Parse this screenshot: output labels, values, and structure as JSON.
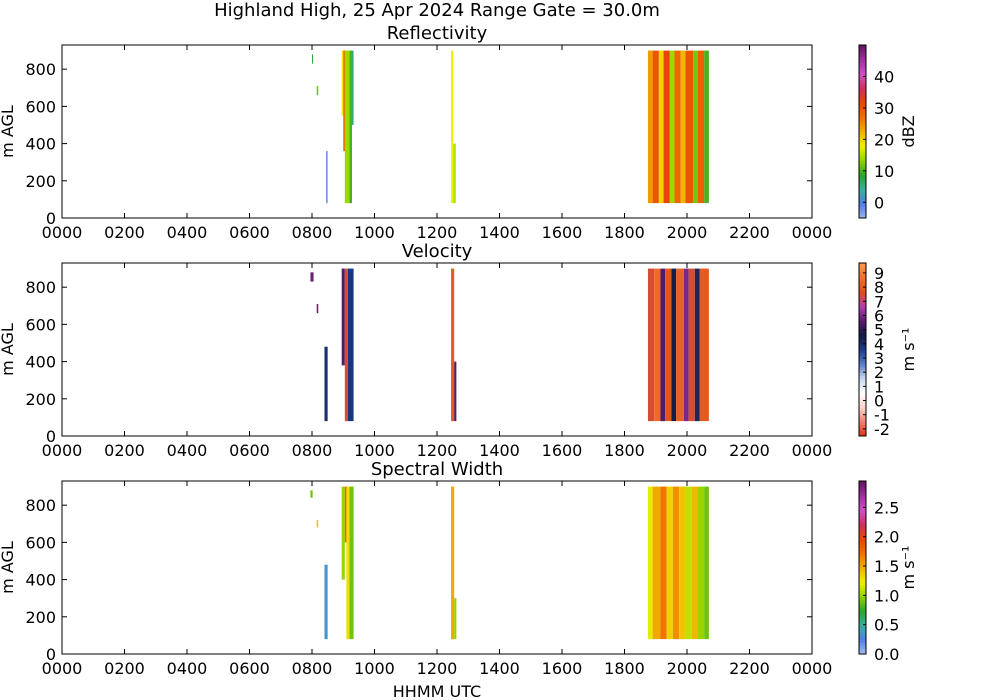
{
  "suptitle": "Highland High, 25 Apr 2024 Range Gate = 30.0m",
  "xlabel": "HHMM UTC",
  "chart_data": [
    {
      "type": "heatmap",
      "title": "Reflectivity",
      "ylabel": "m AGL",
      "xlim": [
        0,
        24
      ],
      "ylim": [
        0,
        930
      ],
      "x_ticks": [
        "0000",
        "0200",
        "0400",
        "0600",
        "0800",
        "1000",
        "1200",
        "1400",
        "1600",
        "1800",
        "2000",
        "2200",
        "0000"
      ],
      "y_ticks": [
        0,
        200,
        400,
        600,
        800
      ],
      "colorbar": {
        "label": "dBZ",
        "range": [
          -5,
          50
        ],
        "ticks": [
          0,
          10,
          20,
          30,
          40
        ],
        "stops": [
          "#9db4f0",
          "#4f7fe6",
          "#3ab0a0",
          "#2aa52a",
          "#8fd400",
          "#f0f000",
          "#f0b000",
          "#f07000",
          "#e84800",
          "#d03060",
          "#d050c8",
          "#a030a0",
          "#601860"
        ]
      },
      "segments": [
        {
          "x0": 8.0,
          "x1": 8.03,
          "y0": 830,
          "y1": 880,
          "value": 8
        },
        {
          "x0": 8.15,
          "x1": 8.2,
          "y0": 660,
          "y1": 710,
          "value": 12
        },
        {
          "x0": 8.45,
          "x1": 8.5,
          "y0": 80,
          "y1": 360,
          "value": -2
        },
        {
          "x0": 8.95,
          "x1": 9.05,
          "y0": 550,
          "y1": 900,
          "value": 18
        },
        {
          "x0": 9.0,
          "x1": 9.15,
          "y0": 360,
          "y1": 900,
          "value": 28
        },
        {
          "x0": 9.05,
          "x1": 9.2,
          "y0": 80,
          "y1": 900,
          "value": 14
        },
        {
          "x0": 9.2,
          "x1": 9.28,
          "y0": 80,
          "y1": 900,
          "value": 10
        },
        {
          "x0": 9.28,
          "x1": 9.33,
          "y0": 500,
          "y1": 900,
          "value": 6
        },
        {
          "x0": 12.45,
          "x1": 12.52,
          "y0": 80,
          "y1": 900,
          "value": 18
        },
        {
          "x0": 12.52,
          "x1": 12.6,
          "y0": 80,
          "y1": 400,
          "value": 15
        },
        {
          "x0": 18.75,
          "x1": 18.9,
          "y0": 80,
          "y1": 900,
          "value": 24
        },
        {
          "x0": 18.9,
          "x1": 19.1,
          "y0": 80,
          "y1": 900,
          "value": 30
        },
        {
          "x0": 19.1,
          "x1": 19.25,
          "y0": 80,
          "y1": 900,
          "value": 20
        },
        {
          "x0": 19.25,
          "x1": 19.45,
          "y0": 80,
          "y1": 900,
          "value": 32
        },
        {
          "x0": 19.45,
          "x1": 19.6,
          "y0": 80,
          "y1": 900,
          "value": 14
        },
        {
          "x0": 19.6,
          "x1": 19.8,
          "y0": 80,
          "y1": 900,
          "value": 28
        },
        {
          "x0": 19.8,
          "x1": 19.95,
          "y0": 80,
          "y1": 900,
          "value": 22
        },
        {
          "x0": 19.95,
          "x1": 20.2,
          "y0": 80,
          "y1": 900,
          "value": 30
        },
        {
          "x0": 20.2,
          "x1": 20.35,
          "y0": 80,
          "y1": 900,
          "value": 12
        },
        {
          "x0": 20.35,
          "x1": 20.55,
          "y0": 80,
          "y1": 900,
          "value": 29
        },
        {
          "x0": 20.55,
          "x1": 20.7,
          "y0": 80,
          "y1": 900,
          "value": 10
        }
      ]
    },
    {
      "type": "heatmap",
      "title": "Velocity",
      "ylabel": "m AGL",
      "xlim": [
        0,
        24
      ],
      "ylim": [
        0,
        930
      ],
      "x_ticks": [
        "0000",
        "0200",
        "0400",
        "0600",
        "0800",
        "1000",
        "1200",
        "1400",
        "1600",
        "1800",
        "2000",
        "2200",
        "0000"
      ],
      "y_ticks": [
        0,
        200,
        400,
        600,
        800
      ],
      "colorbar": {
        "label": "m s⁻¹",
        "range": [
          -2.5,
          9.7
        ],
        "ticks": [
          -2,
          -1,
          0,
          1,
          2,
          3,
          4,
          5,
          6,
          7,
          8,
          9
        ],
        "stops": [
          "#e03010",
          "#f08070",
          "#fbd4cc",
          "#ffffff",
          "#c8d8f0",
          "#5a7ec8",
          "#1e3c8c",
          "#141a40",
          "#5a1a70",
          "#b040b0",
          "#e05018",
          "#f07030",
          "#f89a50"
        ]
      },
      "segments": [
        {
          "x0": 7.95,
          "x1": 8.05,
          "y0": 830,
          "y1": 880,
          "value": 5.8
        },
        {
          "x0": 8.15,
          "x1": 8.2,
          "y0": 660,
          "y1": 710,
          "value": 5.8
        },
        {
          "x0": 8.4,
          "x1": 8.5,
          "y0": 80,
          "y1": 480,
          "value": 4
        },
        {
          "x0": 8.95,
          "x1": 9.05,
          "y0": 380,
          "y1": 900,
          "value": 5.5
        },
        {
          "x0": 9.05,
          "x1": 9.15,
          "y0": 80,
          "y1": 900,
          "value": 7.5
        },
        {
          "x0": 9.15,
          "x1": 9.33,
          "y0": 80,
          "y1": 900,
          "value": 3.8
        },
        {
          "x0": 12.45,
          "x1": 12.55,
          "y0": 80,
          "y1": 900,
          "value": 8
        },
        {
          "x0": 12.55,
          "x1": 12.62,
          "y0": 80,
          "y1": 400,
          "value": 5.5
        },
        {
          "x0": 18.75,
          "x1": 18.95,
          "y0": 80,
          "y1": 900,
          "value": 7.5
        },
        {
          "x0": 18.95,
          "x1": 19.15,
          "y0": 80,
          "y1": 900,
          "value": 8.5
        },
        {
          "x0": 19.15,
          "x1": 19.3,
          "y0": 80,
          "y1": 900,
          "value": 5.5
        },
        {
          "x0": 19.3,
          "x1": 19.5,
          "y0": 80,
          "y1": 900,
          "value": 7.8
        },
        {
          "x0": 19.5,
          "x1": 19.65,
          "y0": 80,
          "y1": 900,
          "value": 4.5
        },
        {
          "x0": 19.65,
          "x1": 19.9,
          "y0": 80,
          "y1": 900,
          "value": 8.2
        },
        {
          "x0": 19.9,
          "x1": 20.05,
          "y0": 80,
          "y1": 900,
          "value": 6
        },
        {
          "x0": 20.05,
          "x1": 20.25,
          "y0": 80,
          "y1": 900,
          "value": 7.5
        },
        {
          "x0": 20.25,
          "x1": 20.4,
          "y0": 80,
          "y1": 900,
          "value": 4.2
        },
        {
          "x0": 20.4,
          "x1": 20.7,
          "y0": 80,
          "y1": 900,
          "value": 8
        }
      ]
    },
    {
      "type": "heatmap",
      "title": "Spectral Width",
      "ylabel": "m AGL",
      "xlim": [
        0,
        24
      ],
      "ylim": [
        0,
        930
      ],
      "x_ticks": [
        "0000",
        "0200",
        "0400",
        "0600",
        "0800",
        "1000",
        "1200",
        "1400",
        "1600",
        "1800",
        "2000",
        "2200",
        "0000"
      ],
      "y_ticks": [
        0,
        200,
        400,
        600,
        800
      ],
      "colorbar": {
        "label": "m s⁻¹",
        "range": [
          0,
          2.95
        ],
        "ticks": [
          "0.0",
          "0.5",
          "1.0",
          "1.5",
          "2.0",
          "2.5"
        ],
        "stops": [
          "#a8bdf0",
          "#4f7fe6",
          "#3ab0a0",
          "#2aa52a",
          "#8fd400",
          "#f0f000",
          "#f0b000",
          "#f07000",
          "#e84800",
          "#d03060",
          "#d050c8",
          "#a030a0",
          "#601860"
        ]
      },
      "segments": [
        {
          "x0": 7.95,
          "x1": 8.02,
          "y0": 840,
          "y1": 880,
          "value": 0.9
        },
        {
          "x0": 8.15,
          "x1": 8.2,
          "y0": 680,
          "y1": 720,
          "value": 1.4
        },
        {
          "x0": 8.4,
          "x1": 8.5,
          "y0": 80,
          "y1": 480,
          "value": 0.35
        },
        {
          "x0": 8.95,
          "x1": 9.05,
          "y0": 400,
          "y1": 900,
          "value": 1.0
        },
        {
          "x0": 9.05,
          "x1": 9.15,
          "y0": 600,
          "y1": 900,
          "value": 1.8
        },
        {
          "x0": 9.1,
          "x1": 9.2,
          "y0": 80,
          "y1": 900,
          "value": 1.3
        },
        {
          "x0": 9.2,
          "x1": 9.33,
          "y0": 80,
          "y1": 900,
          "value": 0.9
        },
        {
          "x0": 12.45,
          "x1": 12.55,
          "y0": 80,
          "y1": 900,
          "value": 1.5
        },
        {
          "x0": 12.55,
          "x1": 12.62,
          "y0": 80,
          "y1": 300,
          "value": 1.0
        },
        {
          "x0": 18.75,
          "x1": 18.9,
          "y0": 80,
          "y1": 900,
          "value": 1.2
        },
        {
          "x0": 18.9,
          "x1": 19.15,
          "y0": 80,
          "y1": 900,
          "value": 1.5
        },
        {
          "x0": 19.15,
          "x1": 19.35,
          "y0": 80,
          "y1": 900,
          "value": 1.7
        },
        {
          "x0": 19.35,
          "x1": 19.55,
          "y0": 80,
          "y1": 900,
          "value": 1.35
        },
        {
          "x0": 19.55,
          "x1": 19.75,
          "y0": 80,
          "y1": 900,
          "value": 1.6
        },
        {
          "x0": 19.75,
          "x1": 19.95,
          "y0": 80,
          "y1": 900,
          "value": 1.4
        },
        {
          "x0": 19.95,
          "x1": 20.15,
          "y0": 80,
          "y1": 900,
          "value": 1.1
        },
        {
          "x0": 20.15,
          "x1": 20.35,
          "y0": 80,
          "y1": 900,
          "value": 1.45
        },
        {
          "x0": 20.35,
          "x1": 20.55,
          "y0": 80,
          "y1": 900,
          "value": 1.0
        },
        {
          "x0": 20.55,
          "x1": 20.7,
          "y0": 80,
          "y1": 900,
          "value": 0.9
        }
      ]
    }
  ]
}
